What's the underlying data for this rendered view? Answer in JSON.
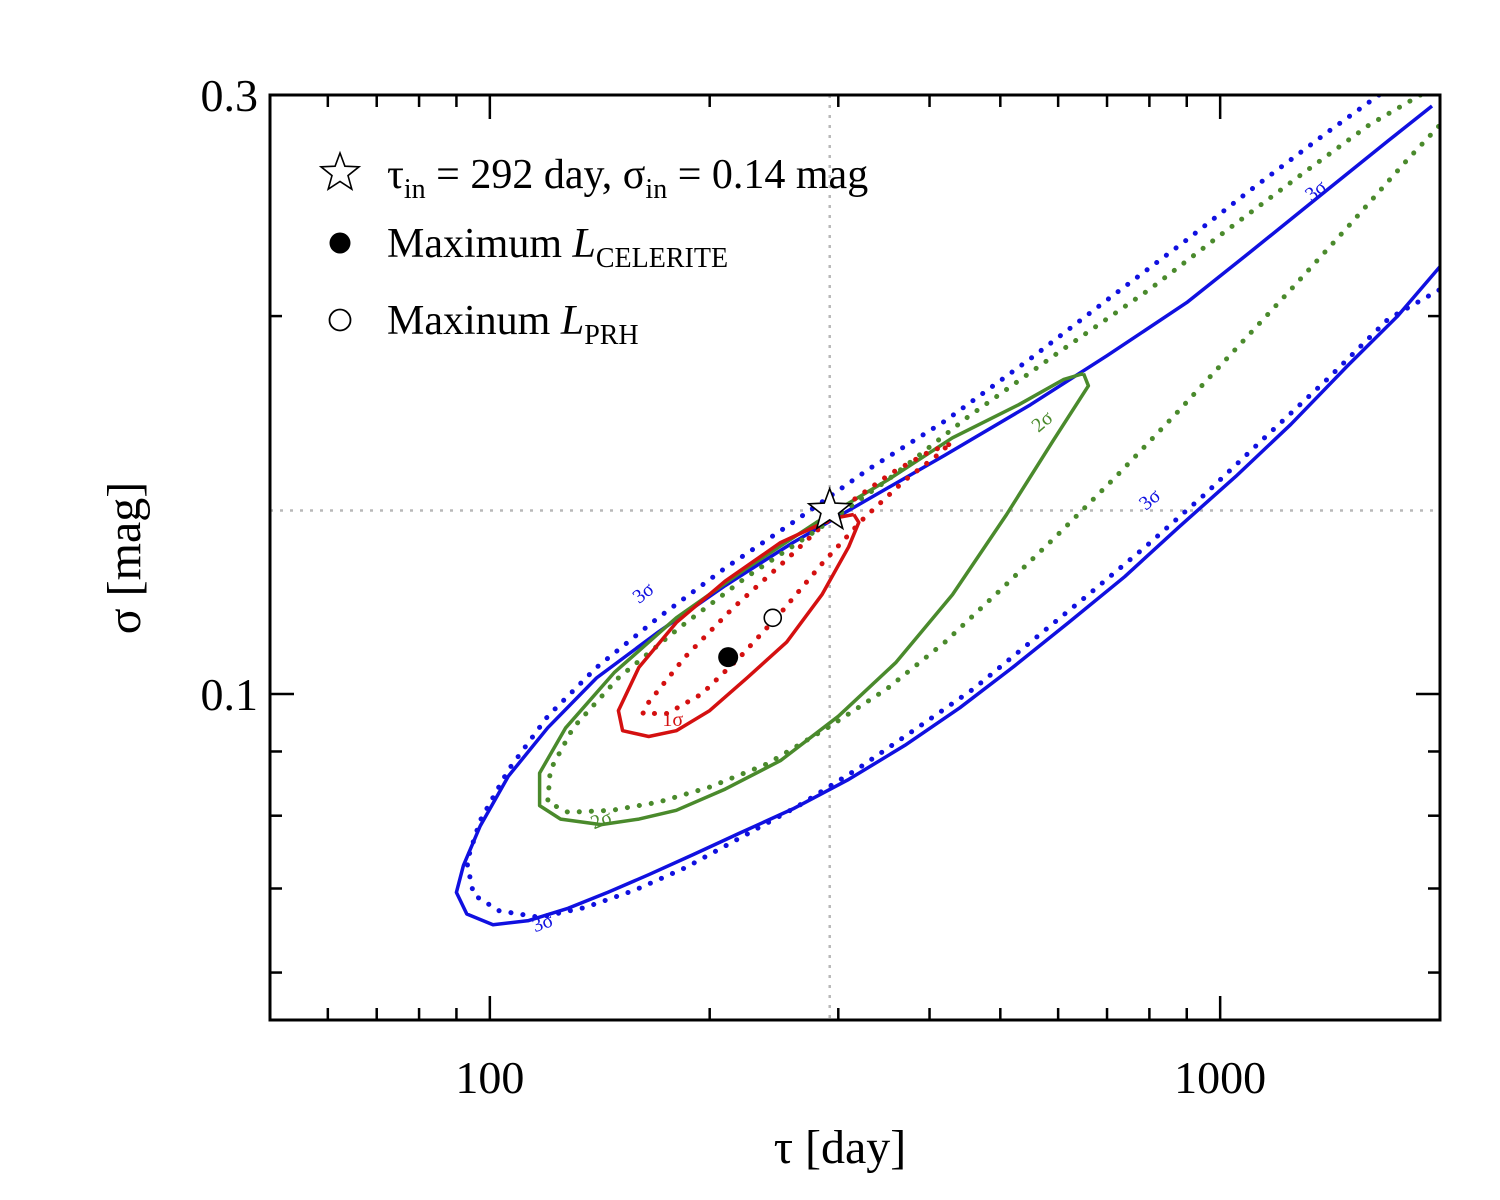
{
  "chart_data": {
    "type": "contour",
    "xlabel": "τ [day]",
    "ylabel": "σ [mag]",
    "x_scale": "log",
    "y_scale": "log",
    "xlim": [
      50,
      2000
    ],
    "ylim": [
      0.055,
      0.3
    ],
    "x_ticks": [
      {
        "value": 100,
        "label": "100"
      },
      {
        "value": 1000,
        "label": "1000"
      }
    ],
    "y_ticks": [
      {
        "value": 0.1,
        "label": "0.1"
      },
      {
        "value": 0.3,
        "label": "0.3"
      }
    ],
    "reference_lines": {
      "tau_in": 292,
      "sigma_in": 0.14
    },
    "markers": {
      "input": {
        "tau": 292,
        "sigma": 0.14,
        "symbol": "open-star"
      },
      "max_celerite": {
        "tau": 212,
        "sigma": 0.107,
        "symbol": "filled-circle"
      },
      "max_prh": {
        "tau": 244,
        "sigma": 0.115,
        "symbol": "open-circle"
      }
    },
    "legend": {
      "position": "top-left",
      "entries": [
        {
          "text": "τ",
          "sub": "in",
          "text2": " = 292 day,  σ",
          "sub2": "in",
          "text3": " = 0.14 mag",
          "symbol": "open-star"
        },
        {
          "text": "Maximum ",
          "italic": "L",
          "sub": "CELERITE",
          "symbol": "filled-circle"
        },
        {
          "text": "Maxinum ",
          "italic": "L",
          "sub": "PRH",
          "symbol": "open-circle"
        }
      ]
    },
    "colors": {
      "blue": "#1010e0",
      "green": "#4a8a2c",
      "red": "#d41010",
      "grid": "#b8b8b8",
      "axis": "#000000"
    },
    "contours": [
      {
        "name": "3σ CELERITE",
        "level": "3σ",
        "color": "blue",
        "style": "solid",
        "points": [
          [
            1950,
            0.294
          ],
          [
            1700,
            0.276
          ],
          [
            1400,
            0.252
          ],
          [
            1100,
            0.225
          ],
          [
            900,
            0.205
          ],
          [
            700,
            0.186
          ],
          [
            550,
            0.17
          ],
          [
            420,
            0.155
          ],
          [
            330,
            0.143
          ],
          [
            260,
            0.132
          ],
          [
            210,
            0.122
          ],
          [
            170,
            0.112
          ],
          [
            140,
            0.103
          ],
          [
            120,
            0.094
          ],
          [
            106,
            0.086
          ],
          [
            97,
            0.0785
          ],
          [
            92,
            0.073
          ],
          [
            90,
            0.0695
          ],
          [
            93,
            0.0668
          ],
          [
            101,
            0.0655
          ],
          [
            113,
            0.066
          ],
          [
            128,
            0.0675
          ],
          [
            145,
            0.0695
          ],
          [
            165,
            0.0718
          ],
          [
            190,
            0.0745
          ],
          [
            220,
            0.0775
          ],
          [
            260,
            0.081
          ],
          [
            310,
            0.0855
          ],
          [
            370,
            0.091
          ],
          [
            440,
            0.0975
          ],
          [
            520,
            0.105
          ],
          [
            620,
            0.114
          ],
          [
            740,
            0.124
          ],
          [
            880,
            0.136
          ],
          [
            1050,
            0.149
          ],
          [
            1250,
            0.164
          ],
          [
            1500,
            0.183
          ],
          [
            1750,
            0.2
          ],
          [
            2000,
            0.219
          ]
        ]
      },
      {
        "name": "3σ PRH",
        "level": "3σ",
        "color": "blue",
        "style": "dotted",
        "points": [
          [
            1650,
            0.3
          ],
          [
            1400,
            0.28
          ],
          [
            1100,
            0.252
          ],
          [
            900,
            0.23
          ],
          [
            700,
            0.206
          ],
          [
            550,
            0.185
          ],
          [
            420,
            0.165
          ],
          [
            330,
            0.151
          ],
          [
            260,
            0.137
          ],
          [
            210,
            0.126
          ],
          [
            170,
            0.115
          ],
          [
            140,
            0.105
          ],
          [
            120,
            0.096
          ],
          [
            106,
            0.087
          ],
          [
            97,
            0.0793
          ],
          [
            93,
            0.0735
          ],
          [
            95,
            0.0692
          ],
          [
            103,
            0.0672
          ],
          [
            117,
            0.0664
          ],
          [
            135,
            0.0676
          ],
          [
            158,
            0.0698
          ],
          [
            185,
            0.0727
          ],
          [
            220,
            0.0768
          ],
          [
            265,
            0.0815
          ],
          [
            320,
            0.0873
          ],
          [
            385,
            0.094
          ],
          [
            460,
            0.101
          ],
          [
            550,
            0.11
          ],
          [
            660,
            0.12
          ],
          [
            790,
            0.131
          ],
          [
            950,
            0.144
          ],
          [
            1150,
            0.16
          ],
          [
            1400,
            0.178
          ],
          [
            1700,
            0.199
          ],
          [
            2000,
            0.21
          ]
        ]
      },
      {
        "name": "2σ CELERITE",
        "level": "2σ",
        "color": "green",
        "style": "solid",
        "points": [
          [
            650,
            0.18
          ],
          [
            610,
            0.178
          ],
          [
            530,
            0.17
          ],
          [
            430,
            0.16
          ],
          [
            350,
            0.148
          ],
          [
            280,
            0.137
          ],
          [
            225,
            0.126
          ],
          [
            180,
            0.115
          ],
          [
            148,
            0.104
          ],
          [
            127,
            0.094
          ],
          [
            117,
            0.0865
          ],
          [
            117,
            0.0815
          ],
          [
            125,
            0.0795
          ],
          [
            142,
            0.0787
          ],
          [
            160,
            0.0795
          ],
          [
            180,
            0.0808
          ],
          [
            210,
            0.084
          ],
          [
            250,
            0.0885
          ],
          [
            300,
            0.096
          ],
          [
            360,
            0.106
          ],
          [
            430,
            0.12
          ],
          [
            510,
            0.139
          ],
          [
            590,
            0.159
          ],
          [
            660,
            0.176
          ],
          [
            650,
            0.18
          ]
        ]
      },
      {
        "name": "2σ PRH",
        "level": "2σ",
        "color": "green",
        "style": "dotted",
        "points": [
          [
            1880,
            0.3
          ],
          [
            1600,
            0.284
          ],
          [
            1300,
            0.26
          ],
          [
            1000,
            0.232
          ],
          [
            800,
            0.21
          ],
          [
            600,
            0.187
          ],
          [
            450,
            0.166
          ],
          [
            350,
            0.148
          ],
          [
            280,
            0.135
          ],
          [
            225,
            0.124
          ],
          [
            182,
            0.113
          ],
          [
            150,
            0.103
          ],
          [
            130,
            0.094
          ],
          [
            121,
            0.087
          ],
          [
            120,
            0.082
          ],
          [
            128,
            0.0805
          ],
          [
            147,
            0.0808
          ],
          [
            170,
            0.082
          ],
          [
            200,
            0.0843
          ],
          [
            240,
            0.088
          ],
          [
            290,
            0.094
          ],
          [
            350,
            0.101
          ],
          [
            420,
            0.11
          ],
          [
            500,
            0.121
          ],
          [
            600,
            0.134
          ],
          [
            720,
            0.149
          ],
          [
            860,
            0.166
          ],
          [
            1030,
            0.186
          ],
          [
            1250,
            0.21
          ],
          [
            1500,
            0.236
          ],
          [
            1800,
            0.266
          ],
          [
            2000,
            0.284
          ]
        ]
      },
      {
        "name": "1σ CELERITE",
        "level": "1σ",
        "color": "red",
        "style": "solid",
        "points": [
          [
            315,
            0.139
          ],
          [
            295,
            0.138
          ],
          [
            250,
            0.132
          ],
          [
            210,
            0.123
          ],
          [
            180,
            0.114
          ],
          [
            160,
            0.105
          ],
          [
            150,
            0.097
          ],
          [
            152,
            0.0935
          ],
          [
            165,
            0.0925
          ],
          [
            180,
            0.0935
          ],
          [
            200,
            0.097
          ],
          [
            225,
            0.103
          ],
          [
            255,
            0.11
          ],
          [
            285,
            0.12
          ],
          [
            310,
            0.131
          ],
          [
            320,
            0.137
          ],
          [
            315,
            0.139
          ]
        ]
      },
      {
        "name": "1σ PRH",
        "level": "1σ",
        "color": "red",
        "style": "dotted",
        "points": [
          [
            425,
            0.158
          ],
          [
            400,
            0.156
          ],
          [
            355,
            0.15
          ],
          [
            300,
            0.14
          ],
          [
            255,
            0.128
          ],
          [
            215,
            0.117
          ],
          [
            185,
            0.107
          ],
          [
            165,
            0.0985
          ],
          [
            162,
            0.0965
          ],
          [
            175,
            0.0965
          ],
          [
            195,
            0.1
          ],
          [
            220,
            0.107
          ],
          [
            250,
            0.116
          ],
          [
            285,
            0.127
          ],
          [
            325,
            0.138
          ],
          [
            370,
            0.148
          ],
          [
            410,
            0.155
          ],
          [
            425,
            0.158
          ]
        ]
      }
    ],
    "contour_labels": [
      {
        "text": "3σ",
        "color": "blue",
        "tau": 1350,
        "sigma": 0.252,
        "angle": -38
      },
      {
        "text": "3σ",
        "color": "blue",
        "tau": 800,
        "sigma": 0.143,
        "angle": -40
      },
      {
        "text": "3σ",
        "color": "blue",
        "tau": 162,
        "sigma": 0.1205,
        "angle": -38
      },
      {
        "text": "3σ",
        "color": "blue",
        "tau": 118,
        "sigma": 0.0658,
        "angle": -20
      },
      {
        "text": "2σ",
        "color": "green",
        "tau": 570,
        "sigma": 0.165,
        "angle": -40
      },
      {
        "text": "2σ",
        "color": "green",
        "tau": 142,
        "sigma": 0.0795,
        "angle": -22
      },
      {
        "text": "1σ",
        "color": "red",
        "tau": 178,
        "sigma": 0.0955,
        "angle": 0
      }
    ]
  }
}
